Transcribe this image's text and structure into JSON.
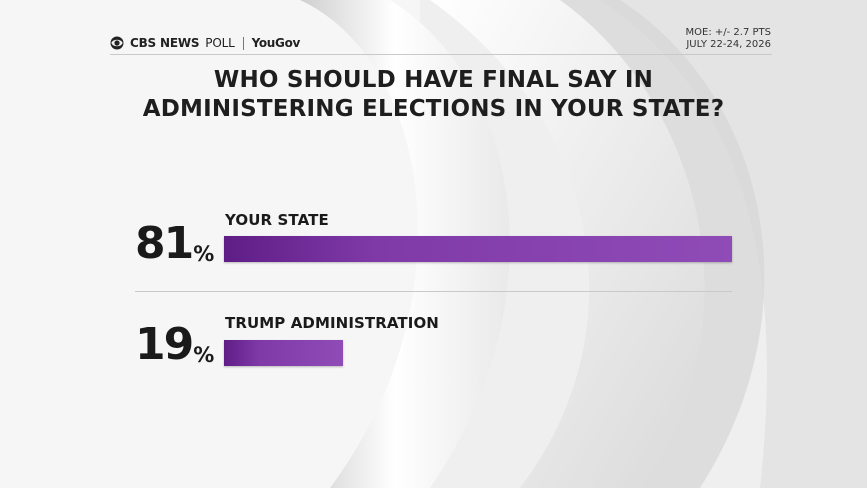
{
  "header": {
    "brand": "CBS NEWS",
    "poll": "POLL",
    "partner": "YouGov",
    "moe": "MOE: +/- 2.7 PTS",
    "dates": "JULY 22-24, 2026"
  },
  "chart_data": {
    "type": "bar",
    "title": "WHO SHOULD HAVE FINAL SAY IN ADMINISTERING ELECTIONS IN YOUR STATE?",
    "title_lines": [
      "WHO SHOULD HAVE FINAL SAY IN",
      "ADMINISTERING ELECTIONS IN YOUR STATE?"
    ],
    "categories": [
      "YOUR STATE",
      "TRUMP ADMINISTRATION"
    ],
    "values": [
      81,
      19
    ],
    "value_labels": [
      "81",
      "19"
    ],
    "unit": "%",
    "xlim": [
      0,
      81
    ],
    "bar_color": "#8f4bb6",
    "legend": "none",
    "grid": false
  }
}
